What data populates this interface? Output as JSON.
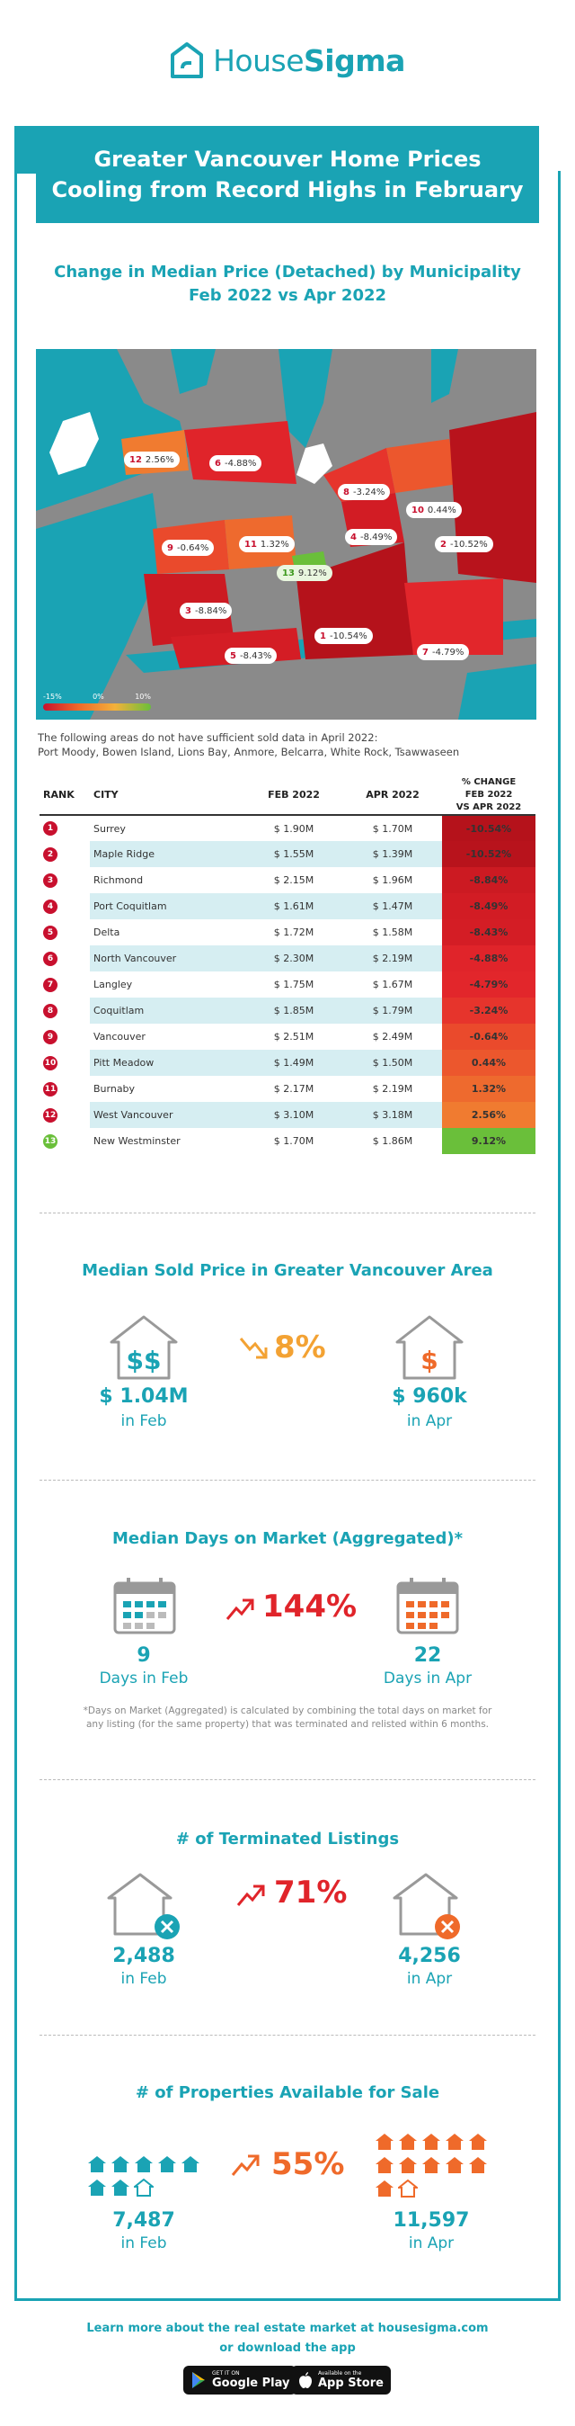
{
  "brand": {
    "name_light": "House",
    "name_bold": "Sigma"
  },
  "header": {
    "title_line1": "Greater Vancouver Home Prices",
    "title_line2": "Cooling from Record Highs in February"
  },
  "map_section": {
    "title_line1": "Change in Median Price (Detached) by Municipality",
    "title_line2": "Feb 2022 vs Apr 2022"
  },
  "legend": {
    "low": "-15%",
    "mid": "0%",
    "high": "10%"
  },
  "map_labels": [
    {
      "rank": "12",
      "pct": "2.56%"
    },
    {
      "rank": "6",
      "pct": "-4.88%"
    },
    {
      "rank": "8",
      "pct": "-3.24%"
    },
    {
      "rank": "10",
      "pct": "0.44%"
    },
    {
      "rank": "9",
      "pct": "-0.64%"
    },
    {
      "rank": "11",
      "pct": "1.32%"
    },
    {
      "rank": "4",
      "pct": "-8.49%"
    },
    {
      "rank": "2",
      "pct": "-10.52%"
    },
    {
      "rank": "13",
      "pct": "9.12%"
    },
    {
      "rank": "3",
      "pct": "-8.84%"
    },
    {
      "rank": "1",
      "pct": "-10.54%"
    },
    {
      "rank": "5",
      "pct": "-8.43%"
    },
    {
      "rank": "7",
      "pct": "-4.79%"
    }
  ],
  "note": {
    "line1": "The following areas do not have sufficient sold data in April 2022:",
    "line2": "Port Moody, Bowen Island, Lions Bay, Anmore, Belcarra, White Rock, Tsawwaseen"
  },
  "table": {
    "headers": {
      "rank": "RANK",
      "city": "CITY",
      "feb": "FEB 2022",
      "apr": "APR 2022",
      "pct_line1": "% CHANGE",
      "pct_line2": "FEB 2022",
      "pct_line3": "VS APR 2022"
    },
    "rows": [
      {
        "rank": "1",
        "city": "Surrey",
        "feb": "$ 1.90M",
        "apr": "$ 1.70M",
        "pct": "-10.54%",
        "color": "#b5121b"
      },
      {
        "rank": "2",
        "city": "Maple Ridge",
        "feb": "$ 1.55M",
        "apr": "$ 1.39M",
        "pct": "-10.52%",
        "color": "#b8131c"
      },
      {
        "rank": "3",
        "city": "Richmond",
        "feb": "$ 2.15M",
        "apr": "$ 1.96M",
        "pct": "-8.84%",
        "color": "#cc1a22"
      },
      {
        "rank": "4",
        "city": "Port Coquitlam",
        "feb": "$ 1.61M",
        "apr": "$ 1.47M",
        "pct": "-8.49%",
        "color": "#d21c24"
      },
      {
        "rank": "5",
        "city": "Delta",
        "feb": "$ 1.72M",
        "apr": "$ 1.58M",
        "pct": "-8.43%",
        "color": "#d41d25"
      },
      {
        "rank": "6",
        "city": "North Vancouver",
        "feb": "$ 2.30M",
        "apr": "$ 2.19M",
        "pct": "-4.88%",
        "color": "#e0242a"
      },
      {
        "rank": "7",
        "city": "Langley",
        "feb": "$ 1.75M",
        "apr": "$ 1.67M",
        "pct": "-4.79%",
        "color": "#e2262b"
      },
      {
        "rank": "8",
        "city": "Coquitlam",
        "feb": "$ 1.85M",
        "apr": "$ 1.79M",
        "pct": "-3.24%",
        "color": "#e6342c"
      },
      {
        "rank": "9",
        "city": "Vancouver",
        "feb": "$ 2.51M",
        "apr": "$ 2.49M",
        "pct": "-0.64%",
        "color": "#ea4a2c"
      },
      {
        "rank": "10",
        "city": "Pitt Meadow",
        "feb": "$ 1.49M",
        "apr": "$ 1.50M",
        "pct": "0.44%",
        "color": "#ec572d"
      },
      {
        "rank": "11",
        "city": "Burnaby",
        "feb": "$ 2.17M",
        "apr": "$ 2.19M",
        "pct": "1.32%",
        "color": "#ee6a2e"
      },
      {
        "rank": "12",
        "city": "West Vancouver",
        "feb": "$ 3.10M",
        "apr": "$ 3.18M",
        "pct": "2.56%",
        "color": "#f07b30"
      },
      {
        "rank": "13",
        "city": "New Westminster",
        "feb": "$ 1.70M",
        "apr": "$ 1.86M",
        "pct": "9.12%",
        "color": "#6abf3a"
      }
    ]
  },
  "median_price": {
    "title": "Median Sold Price in Greater Vancouver Area",
    "change": "8%",
    "feb_value": "$ 1.04M",
    "feb_label": "in Feb",
    "apr_value": "$ 960k",
    "apr_label": "in Apr",
    "icon_feb": "$$",
    "icon_apr": "$"
  },
  "days_on_market": {
    "title": "Median Days on Market (Aggregated)*",
    "change": "144%",
    "feb_value": "9",
    "feb_label": "Days in Feb",
    "apr_value": "22",
    "apr_label": "Days in Apr",
    "footnote_line1": "*Days on Market (Aggregated) is calculated by combining the total days on market for",
    "footnote_line2": "any listing (for the same property) that was terminated and relisted within 6 months."
  },
  "terminated": {
    "title": "# of Terminated Listings",
    "change": "71%",
    "feb_value": "2,488",
    "feb_label": "in Feb",
    "apr_value": "4,256",
    "apr_label": "in Apr"
  },
  "available": {
    "title": "# of Properties Available for Sale",
    "change": "55%",
    "feb_value": "7,487",
    "feb_label": "in Feb",
    "apr_value": "11,597",
    "apr_label": "in Apr"
  },
  "footer": {
    "line1": "Learn more about the real estate market at housesigma.com",
    "line2": "or download the app",
    "google_small": "GET IT ON",
    "google_big": "Google Play",
    "apple_small": "Available on the",
    "apple_big": "App Store"
  },
  "colors": {
    "teal": "#1aa3b4",
    "orange": "#f3a233",
    "red": "#e0242a",
    "dark_orange": "#ef6a2a"
  }
}
